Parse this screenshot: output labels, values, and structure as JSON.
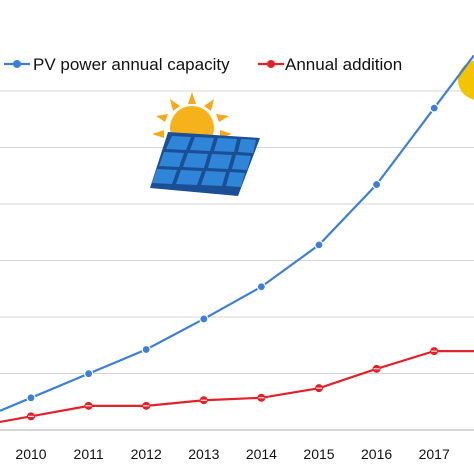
{
  "chart_data": {
    "type": "line",
    "categories": [
      "2010",
      "2011",
      "2012",
      "2013",
      "2014",
      "2015",
      "2016",
      "2017"
    ],
    "series": [
      {
        "name": "PV power annual capacity",
        "color": "#3d7fd6",
        "marker": "circle",
        "values": [
          40,
          70,
          100,
          138,
          178,
          230,
          305,
          400
        ]
      },
      {
        "name": "Annual addition",
        "color": "#e0222a",
        "marker": "circle-cross",
        "values": [
          17,
          30,
          30,
          37,
          40,
          52,
          76,
          98
        ]
      }
    ],
    "grid": "horizontal",
    "legend_position": "top",
    "decorations": [
      "solar-panel-icon",
      "sun-icon"
    ]
  }
}
